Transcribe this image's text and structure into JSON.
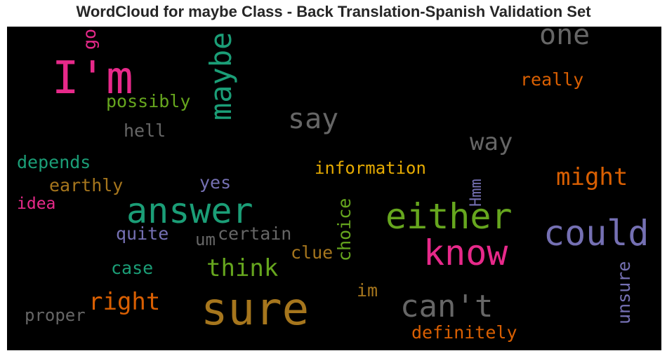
{
  "title": "WordCloud for maybe Class - Back Translation-Spanish Validation Set",
  "colors": {
    "pink": "#e7298a",
    "teal": "#1b9e77",
    "green": "#66a61e",
    "orange": "#d95f02",
    "purple": "#7570b3",
    "gold": "#a6761d",
    "yellow": "#e6ab02",
    "gray": "#666666"
  },
  "words": [
    {
      "text": "sure",
      "color": "#a6761d"
    },
    {
      "text": "I'm",
      "color": "#e7298a"
    },
    {
      "text": "answer",
      "color": "#1b9e77"
    },
    {
      "text": "either",
      "color": "#66a61e"
    },
    {
      "text": "know",
      "color": "#e7298a"
    },
    {
      "text": "could",
      "color": "#7570b3"
    },
    {
      "text": "can't",
      "color": "#666666"
    },
    {
      "text": "maybe",
      "color": "#1b9e77"
    },
    {
      "text": "one",
      "color": "#666666"
    },
    {
      "text": "say",
      "color": "#666666"
    },
    {
      "text": "way",
      "color": "#666666"
    },
    {
      "text": "might",
      "color": "#d95f02"
    },
    {
      "text": "right",
      "color": "#d95f02"
    },
    {
      "text": "think",
      "color": "#66a61e"
    },
    {
      "text": "information",
      "color": "#e6ab02"
    },
    {
      "text": "really",
      "color": "#d95f02"
    },
    {
      "text": "possibly",
      "color": "#66a61e"
    },
    {
      "text": "depends",
      "color": "#1b9e77"
    },
    {
      "text": "earthly",
      "color": "#a6761d"
    },
    {
      "text": "hell",
      "color": "#666666"
    },
    {
      "text": "yes",
      "color": "#7570b3"
    },
    {
      "text": "idea",
      "color": "#e7298a"
    },
    {
      "text": "quite",
      "color": "#7570b3"
    },
    {
      "text": "certain",
      "color": "#666666"
    },
    {
      "text": "um",
      "color": "#666666"
    },
    {
      "text": "clue",
      "color": "#a6761d"
    },
    {
      "text": "case",
      "color": "#1b9e77"
    },
    {
      "text": "im",
      "color": "#a6761d"
    },
    {
      "text": "proper",
      "color": "#666666"
    },
    {
      "text": "definitely",
      "color": "#d95f02"
    },
    {
      "text": "go",
      "color": "#e7298a"
    },
    {
      "text": "Hmm",
      "color": "#7570b3"
    },
    {
      "text": "choice",
      "color": "#66a61e"
    },
    {
      "text": "unsure",
      "color": "#7570b3"
    }
  ]
}
